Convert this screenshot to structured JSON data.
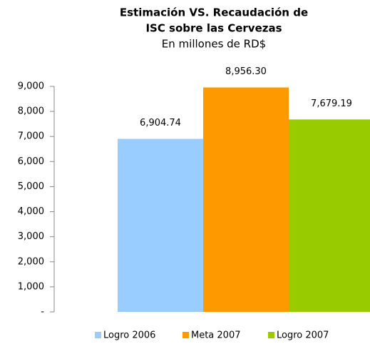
{
  "chart_data": {
    "type": "bar",
    "title": [
      "Estimación VS. Recaudación de",
      "ISC  sobre las Cervezas"
    ],
    "subtitle": "En millones de RD$",
    "categories": [
      null
    ],
    "series": [
      {
        "name": "Logro 2006",
        "color": "#99ccff",
        "values": [
          6904.74
        ],
        "value_labels": [
          "6,904.74"
        ]
      },
      {
        "name": "Meta 2007",
        "color": "#ff9900",
        "values": [
          8956.3
        ],
        "value_labels": [
          "8,956.30"
        ]
      },
      {
        "name": "Logro 2007",
        "color": "#99cc00",
        "values": [
          7679.19
        ],
        "value_labels": [
          "7,679.19"
        ]
      }
    ],
    "ylim": [
      0,
      9000
    ],
    "yticks": [
      {
        "value": 0,
        "label": "-"
      },
      {
        "value": 1000,
        "label": "1,000"
      },
      {
        "value": 2000,
        "label": "2,000"
      },
      {
        "value": 3000,
        "label": "3,000"
      },
      {
        "value": 4000,
        "label": "4,000"
      },
      {
        "value": 5000,
        "label": "5,000"
      },
      {
        "value": 6000,
        "label": "6,000"
      },
      {
        "value": 7000,
        "label": "7,000"
      },
      {
        "value": 8000,
        "label": "8,000"
      },
      {
        "value": 9000,
        "label": "9,000"
      }
    ],
    "legend": "bottom"
  }
}
